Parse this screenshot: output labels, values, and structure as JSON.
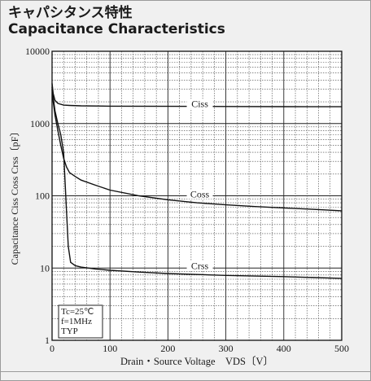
{
  "title_jp": "キャパシタンス特性",
  "title_en": "Capacitance Characteristics",
  "chart_data": {
    "type": "line",
    "xlabel": "Drain・Source Voltage　VDS〔V〕",
    "ylabel": "Capacitance Ciss Coss Crss〔pF〕",
    "xlim": [
      0,
      500
    ],
    "ylim": [
      1,
      10000
    ],
    "y_scale": "log",
    "grid": true,
    "x_ticks": [
      0,
      100,
      200,
      300,
      400,
      500
    ],
    "x_tick_labels": [
      "0",
      "100",
      "200",
      "300",
      "400",
      "500"
    ],
    "y_ticks": [
      1,
      10,
      100,
      1000,
      10000
    ],
    "y_tick_labels": [
      "1",
      "10",
      "100",
      "1000",
      "10000"
    ],
    "conditions": [
      "Tc=25℃",
      "f=1MHz",
      "TYP"
    ],
    "series": [
      {
        "name": "Ciss",
        "label_at": [
          255,
          1700
        ],
        "x": [
          0,
          2,
          5,
          10,
          20,
          30,
          50,
          100,
          200,
          300,
          400,
          500
        ],
        "y": [
          3600,
          2600,
          2100,
          1900,
          1800,
          1780,
          1760,
          1740,
          1730,
          1720,
          1715,
          1710
        ]
      },
      {
        "name": "Coss",
        "label_at": [
          255,
          95
        ],
        "x": [
          0,
          2,
          5,
          10,
          15,
          20,
          25,
          30,
          40,
          50,
          75,
          100,
          150,
          200,
          250,
          300,
          350,
          400,
          450,
          500
        ],
        "y": [
          3000,
          2000,
          1300,
          800,
          500,
          330,
          250,
          210,
          185,
          165,
          140,
          120,
          100,
          88,
          80,
          75,
          71,
          68,
          65,
          62
        ]
      },
      {
        "name": "Crss",
        "label_at": [
          255,
          9.7
        ],
        "x": [
          0,
          2,
          5,
          10,
          15,
          20,
          25,
          28,
          32,
          40,
          50,
          75,
          100,
          150,
          200,
          300,
          400,
          500
        ],
        "y": [
          3200,
          2300,
          1500,
          1000,
          700,
          400,
          60,
          20,
          12,
          10.8,
          10.3,
          9.7,
          9.3,
          8.8,
          8.4,
          7.9,
          7.6,
          7.2
        ]
      }
    ]
  }
}
